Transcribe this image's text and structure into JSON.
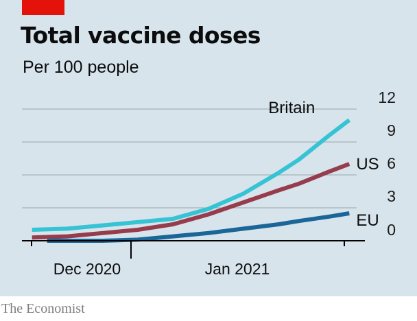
{
  "header": {
    "title": "Total vaccine doses",
    "subtitle": "Per 100 people"
  },
  "footer": {
    "source": "The Economist"
  },
  "colors": {
    "background": "#d7e4ec",
    "brand_red": "#e3120b",
    "britain": "#36c3d4",
    "us": "#963c4c",
    "eu": "#1a6698",
    "gridline": "#9aa6ad",
    "axis": "#000000"
  },
  "chart_data": {
    "type": "line",
    "title": "Total vaccine doses",
    "subtitle": "Per 100 people",
    "xlabel": "",
    "ylabel": "",
    "x_tick_labels": [
      "Dec 2020",
      "Jan 2021"
    ],
    "y_ticks": [
      0,
      3,
      6,
      9,
      12
    ],
    "ylim": [
      0,
      12
    ],
    "y_axis_side": "right",
    "grid": true,
    "legend": "direct labels at line ends",
    "series": [
      {
        "name": "Britain",
        "color": "#36c3d4",
        "points": [
          [
            "2020-11-28",
            1.0
          ],
          [
            "2020-12-05",
            1.1
          ],
          [
            "2020-12-12",
            1.4
          ],
          [
            "2020-12-19",
            1.7
          ],
          [
            "2020-12-26",
            2.0
          ],
          [
            "2021-01-02",
            2.9
          ],
          [
            "2021-01-09",
            4.3
          ],
          [
            "2021-01-16",
            6.2
          ],
          [
            "2021-01-20",
            7.4
          ],
          [
            "2021-01-26",
            9.6
          ],
          [
            "2021-01-30",
            11.0
          ]
        ]
      },
      {
        "name": "US",
        "color": "#963c4c",
        "points": [
          [
            "2020-11-28",
            0.3
          ],
          [
            "2020-12-05",
            0.4
          ],
          [
            "2020-12-12",
            0.7
          ],
          [
            "2020-12-19",
            1.0
          ],
          [
            "2020-12-26",
            1.5
          ],
          [
            "2021-01-02",
            2.4
          ],
          [
            "2021-01-09",
            3.5
          ],
          [
            "2021-01-16",
            4.6
          ],
          [
            "2021-01-20",
            5.2
          ],
          [
            "2021-01-26",
            6.3
          ],
          [
            "2021-01-30",
            7.0
          ]
        ]
      },
      {
        "name": "EU",
        "color": "#1a6698",
        "points": [
          [
            "2020-12-01",
            0.0
          ],
          [
            "2020-12-12",
            0.0
          ],
          [
            "2020-12-19",
            0.1
          ],
          [
            "2020-12-26",
            0.4
          ],
          [
            "2021-01-02",
            0.7
          ],
          [
            "2021-01-09",
            1.1
          ],
          [
            "2021-01-16",
            1.5
          ],
          [
            "2021-01-20",
            1.8
          ],
          [
            "2021-01-26",
            2.2
          ],
          [
            "2021-01-30",
            2.5
          ]
        ]
      }
    ]
  }
}
